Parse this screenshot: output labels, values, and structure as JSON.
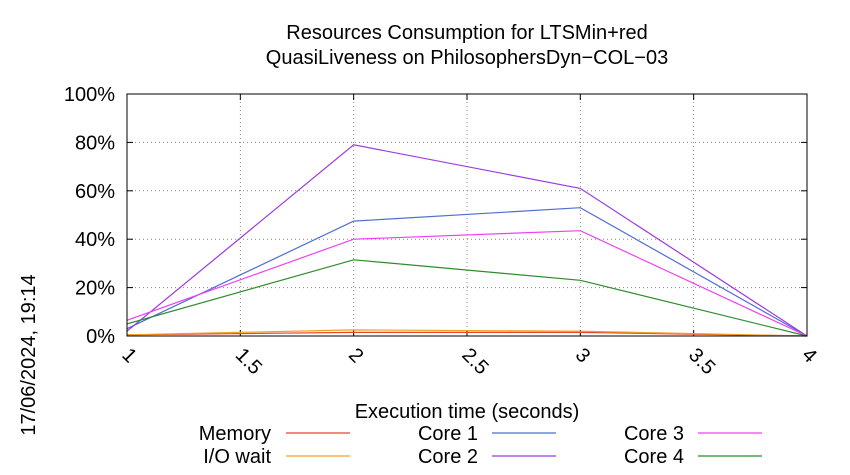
{
  "chart_data": {
    "type": "line",
    "title": "Resources Consumption for LTSMin+red",
    "subtitle": "QuasiLiveness on PhilosophersDyn−COL−03",
    "xlabel": "Execution time (seconds)",
    "ylabel": "",
    "timestamp": "17/06/2024, 19:14",
    "xlim": [
      1,
      4
    ],
    "ylim": [
      0,
      100
    ],
    "x_ticks": [
      1,
      1.5,
      2,
      2.5,
      3,
      3.5,
      4
    ],
    "x_tick_labels": [
      "1",
      "1.5",
      "2",
      "2.5",
      "3",
      "3.5",
      "4"
    ],
    "y_ticks": [
      0,
      20,
      40,
      60,
      80,
      100
    ],
    "y_tick_labels": [
      "0%",
      "20%",
      "40%",
      "60%",
      "80%",
      "100%"
    ],
    "grid": true,
    "legend_position": "bottom",
    "x": [
      1,
      2,
      3,
      4
    ],
    "series": [
      {
        "name": "Memory",
        "color": "#e8452c",
        "values": [
          0.5,
          1.5,
          1.5,
          0
        ]
      },
      {
        "name": "I/O wait",
        "color": "#f0a020",
        "values": [
          0.5,
          2.5,
          2,
          0
        ]
      },
      {
        "name": "Core 1",
        "color": "#4f6ed4",
        "values": [
          3,
          47.5,
          53,
          0
        ]
      },
      {
        "name": "Core 2",
        "color": "#9c3be0",
        "values": [
          2,
          79,
          61,
          0
        ]
      },
      {
        "name": "Core 3",
        "color": "#f040f0",
        "values": [
          6.5,
          40,
          43.5,
          0
        ]
      },
      {
        "name": "Core 4",
        "color": "#2e8b2e",
        "values": [
          5,
          31.5,
          23,
          0
        ]
      }
    ]
  }
}
